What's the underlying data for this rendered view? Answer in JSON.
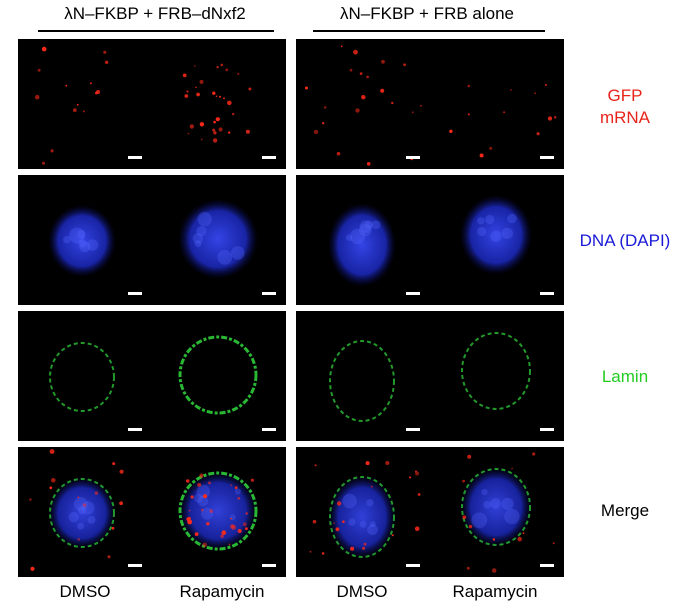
{
  "headers": [
    "λN–FKBP + FRB–dNxf2",
    "λN–FKBP + FRB alone"
  ],
  "row_labels": [
    {
      "lines": [
        "GFP",
        "mRNA"
      ],
      "color": "#e8231a"
    },
    {
      "lines": [
        "DNA (DAPI)"
      ],
      "color": "#1a1ad6"
    },
    {
      "lines": [
        "Lamin"
      ],
      "color": "#22cc22"
    },
    {
      "lines": [
        "Merge"
      ],
      "color": "#000000"
    }
  ],
  "column_labels": [
    "DMSO",
    "Rapamycin",
    "DMSO",
    "Rapamycin"
  ],
  "channel_colors": {
    "gfp_mrna": "#ff2a1a",
    "dapi": "#2030d8",
    "lamin": "#2ecc3a"
  }
}
